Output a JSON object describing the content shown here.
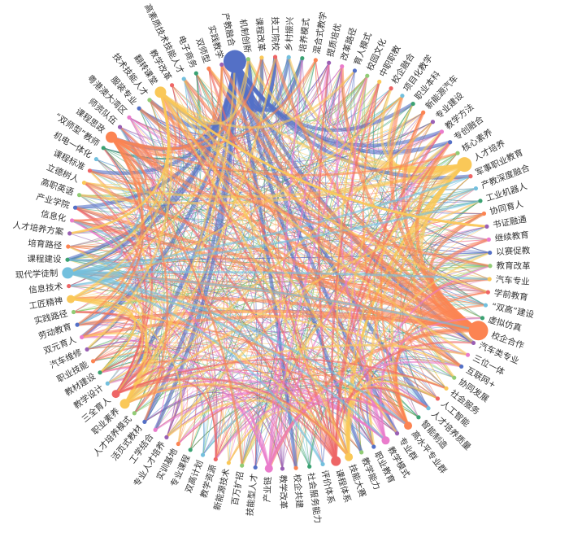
{
  "chart_data": {
    "type": "chord-network",
    "palette": [
      "#5470c6",
      "#91cc75",
      "#fac858",
      "#ee6666",
      "#73c0de",
      "#3ba272",
      "#fc8452",
      "#9a60b4",
      "#ea7ccc"
    ],
    "nodes": [
      {
        "label": "产教融合"
      },
      {
        "label": "机制创新"
      },
      {
        "label": "课程改革"
      },
      {
        "label": "技工院校"
      },
      {
        "label": "乡村振兴"
      },
      {
        "label": "培养模式"
      },
      {
        "label": "混合式教学"
      },
      {
        "label": "提质培优"
      },
      {
        "label": "改革路径"
      },
      {
        "label": "育人模式"
      },
      {
        "label": "校园文化"
      },
      {
        "label": "中职职教"
      },
      {
        "label": "校企融合"
      },
      {
        "label": "项目化教学"
      },
      {
        "label": "职业本科"
      },
      {
        "label": "新能源汽车"
      },
      {
        "label": "专业建设"
      },
      {
        "label": "教学方法"
      },
      {
        "label": "专创融合"
      },
      {
        "label": "核心素养"
      },
      {
        "label": "人才培养"
      },
      {
        "label": "军事职业教育"
      },
      {
        "label": "产教深度融合"
      },
      {
        "label": "工业机器人"
      },
      {
        "label": "协同育人"
      },
      {
        "label": "书证融通"
      },
      {
        "label": "继续教育"
      },
      {
        "label": "以赛促教"
      },
      {
        "label": "教育改革"
      },
      {
        "label": "汽车专业"
      },
      {
        "label": "学前教育"
      },
      {
        "label": "“双高”建设"
      },
      {
        "label": "虚拟仿真"
      },
      {
        "label": "校企合作"
      },
      {
        "label": "汽车类专业"
      },
      {
        "label": "三位一体"
      },
      {
        "label": "互联网+"
      },
      {
        "label": "协同发展"
      },
      {
        "label": "社会服务"
      },
      {
        "label": "人工智能"
      },
      {
        "label": "人才培养质量"
      },
      {
        "label": "智能制造"
      },
      {
        "label": "高水平专业群"
      },
      {
        "label": "专业群"
      },
      {
        "label": "教学模式"
      },
      {
        "label": "职业教育"
      },
      {
        "label": "教学能力"
      },
      {
        "label": "技能大赛"
      },
      {
        "label": "课程体系"
      },
      {
        "label": "评价体系"
      },
      {
        "label": "社会服务能力"
      },
      {
        "label": "校企共建"
      },
      {
        "label": "教学改革"
      },
      {
        "label": "产业链"
      },
      {
        "label": "技能型人才"
      },
      {
        "label": "百万扩招"
      },
      {
        "label": "新能源技术"
      },
      {
        "label": "教学资源"
      },
      {
        "label": "双高计划"
      },
      {
        "label": "专业课程"
      },
      {
        "label": "实训基地"
      },
      {
        "label": "专业人才培养"
      },
      {
        "label": "工学结合"
      },
      {
        "label": "活页式教材"
      },
      {
        "label": "人才培养模式"
      },
      {
        "label": "职业素养"
      },
      {
        "label": "三全育人"
      },
      {
        "label": "教学设计"
      },
      {
        "label": "教材建设"
      },
      {
        "label": "职业技能"
      },
      {
        "label": "汽车维修"
      },
      {
        "label": "双元育人"
      },
      {
        "label": "劳动教育"
      },
      {
        "label": "实践路径"
      },
      {
        "label": "工匠精神"
      },
      {
        "label": "信息技术"
      },
      {
        "label": "现代学徒制"
      },
      {
        "label": "课程建设"
      },
      {
        "label": "培育路径"
      },
      {
        "label": "人才培养方案"
      },
      {
        "label": "信息化"
      },
      {
        "label": "产业学院"
      },
      {
        "label": "高职英语"
      },
      {
        "label": "立德树人"
      },
      {
        "label": "课程标准"
      },
      {
        "label": "机电一体化"
      },
      {
        "label": "“双师型”教师"
      },
      {
        "label": "课程思政"
      },
      {
        "label": "师资队伍"
      },
      {
        "label": "粤港澳大湾区"
      },
      {
        "label": "服装专业"
      },
      {
        "label": "技术技能人才"
      },
      {
        "label": "翻转课堂"
      },
      {
        "label": "教学改革"
      },
      {
        "label": "高素质技术技能人才"
      },
      {
        "label": "电子商务"
      },
      {
        "label": "双师型"
      },
      {
        "label": "实践教学"
      }
    ]
  }
}
